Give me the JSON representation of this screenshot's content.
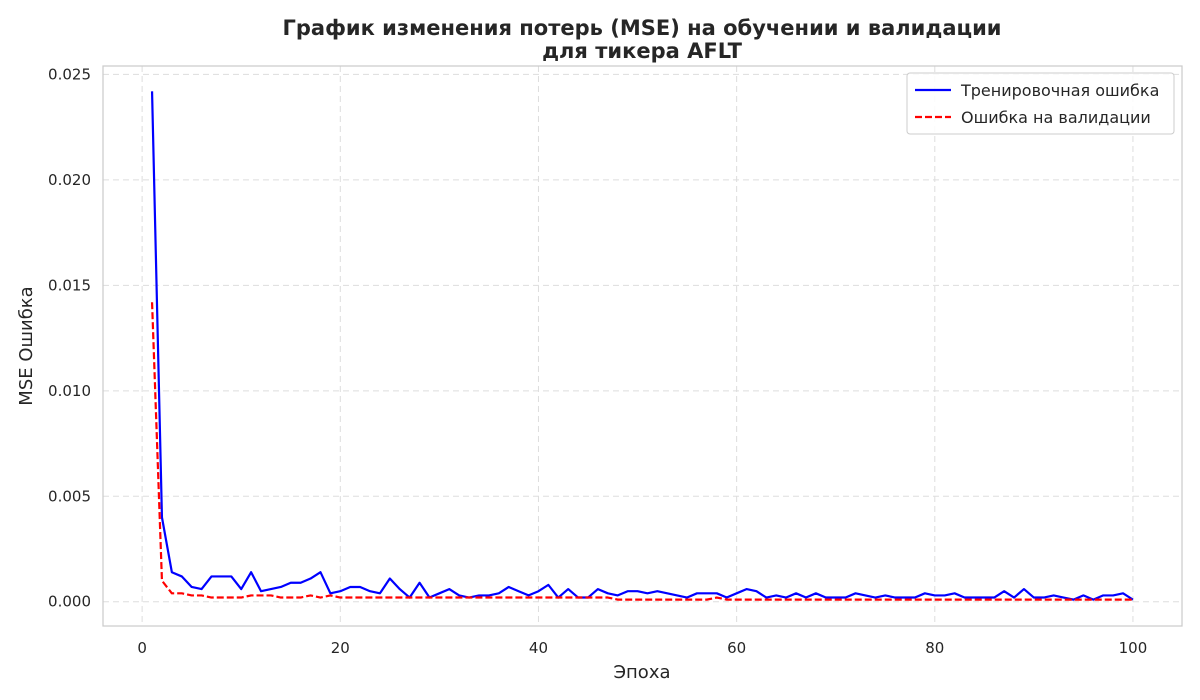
{
  "chart_data": {
    "type": "line",
    "title_line1": "График изменения потерь (MSE) на обучении и валидации",
    "title_line2": "для тикера AFLT",
    "xlabel": "Эпоха",
    "ylabel": "MSE Ошибка",
    "xlim": [
      -3.95,
      104.95
    ],
    "ylim": [
      -0.00115,
      0.0254
    ],
    "xticks": [
      0,
      20,
      40,
      60,
      80,
      100
    ],
    "xtick_labels": [
      "0",
      "20",
      "40",
      "60",
      "80",
      "100"
    ],
    "yticks": [
      0.0,
      0.005,
      0.01,
      0.015,
      0.02,
      0.025
    ],
    "ytick_labels": [
      "0.000",
      "0.005",
      "0.010",
      "0.015",
      "0.020",
      "0.025"
    ],
    "grid": true,
    "legend_position": "top-right",
    "x": [
      1,
      2,
      3,
      4,
      5,
      6,
      7,
      8,
      9,
      10,
      11,
      12,
      13,
      14,
      15,
      16,
      17,
      18,
      19,
      20,
      21,
      22,
      23,
      24,
      25,
      26,
      27,
      28,
      29,
      30,
      31,
      32,
      33,
      34,
      35,
      36,
      37,
      38,
      39,
      40,
      41,
      42,
      43,
      44,
      45,
      46,
      47,
      48,
      49,
      50,
      51,
      52,
      53,
      54,
      55,
      56,
      57,
      58,
      59,
      60,
      61,
      62,
      63,
      64,
      65,
      66,
      67,
      68,
      69,
      70,
      71,
      72,
      73,
      74,
      75,
      76,
      77,
      78,
      79,
      80,
      81,
      82,
      83,
      84,
      85,
      86,
      87,
      88,
      89,
      90,
      91,
      92,
      93,
      94,
      95,
      96,
      97,
      98,
      99,
      100
    ],
    "series": [
      {
        "name": "Тренировочная ошибка",
        "color": "#0000ff",
        "style": "solid",
        "values": [
          0.0242,
          0.004,
          0.0014,
          0.0012,
          0.0007,
          0.0006,
          0.0012,
          0.0012,
          0.0012,
          0.0006,
          0.0014,
          0.0005,
          0.0006,
          0.0007,
          0.0009,
          0.0009,
          0.0011,
          0.0014,
          0.0004,
          0.0005,
          0.0007,
          0.0007,
          0.0005,
          0.0004,
          0.0011,
          0.0006,
          0.0002,
          0.0009,
          0.0002,
          0.0004,
          0.0006,
          0.0003,
          0.0002,
          0.0003,
          0.0003,
          0.0004,
          0.0007,
          0.0005,
          0.0003,
          0.0005,
          0.0008,
          0.0002,
          0.0006,
          0.0002,
          0.0002,
          0.0006,
          0.0004,
          0.0003,
          0.0005,
          0.0005,
          0.0004,
          0.0005,
          0.0004,
          0.0003,
          0.0002,
          0.0004,
          0.0004,
          0.0004,
          0.0002,
          0.0004,
          0.0006,
          0.0005,
          0.0002,
          0.0003,
          0.0002,
          0.0004,
          0.0002,
          0.0004,
          0.0002,
          0.0002,
          0.0002,
          0.0004,
          0.0003,
          0.0002,
          0.0003,
          0.0002,
          0.0002,
          0.0002,
          0.0004,
          0.0003,
          0.0003,
          0.0004,
          0.0002,
          0.0002,
          0.0002,
          0.0002,
          0.0005,
          0.0002,
          0.0006,
          0.0002,
          0.0002,
          0.0003,
          0.0002,
          0.0001,
          0.0003,
          0.0001,
          0.0003,
          0.0003,
          0.0004,
          0.0001
        ]
      },
      {
        "name": "Ошибка на валидации",
        "color": "#ff0000",
        "style": "dashed",
        "values": [
          0.0142,
          0.001,
          0.0004,
          0.0004,
          0.0003,
          0.0003,
          0.0002,
          0.0002,
          0.0002,
          0.0002,
          0.0003,
          0.0003,
          0.0003,
          0.0002,
          0.0002,
          0.0002,
          0.0003,
          0.0002,
          0.0003,
          0.0002,
          0.0002,
          0.0002,
          0.0002,
          0.0002,
          0.0002,
          0.0002,
          0.0002,
          0.0002,
          0.0002,
          0.0002,
          0.0002,
          0.0002,
          0.0002,
          0.0002,
          0.0002,
          0.0002,
          0.0002,
          0.0002,
          0.0002,
          0.0002,
          0.0002,
          0.0002,
          0.0002,
          0.0002,
          0.0002,
          0.0002,
          0.0002,
          0.0001,
          0.0001,
          0.0001,
          0.0001,
          0.0001,
          0.0001,
          0.0001,
          0.0001,
          0.0001,
          0.0001,
          0.0002,
          0.0001,
          0.0001,
          0.0001,
          0.0001,
          0.0001,
          0.0001,
          0.0001,
          0.0001,
          0.0001,
          0.0001,
          0.0001,
          0.0001,
          0.0001,
          0.0001,
          0.0001,
          0.0001,
          0.0001,
          0.0001,
          0.0001,
          0.0001,
          0.0001,
          0.0001,
          0.0001,
          0.0001,
          0.0001,
          0.0001,
          0.0001,
          0.0001,
          0.0001,
          0.0001,
          0.0001,
          0.0001,
          0.0001,
          0.0001,
          0.0001,
          0.0001,
          0.0001,
          0.0001,
          0.0001,
          0.0001,
          0.0001,
          0.0001
        ]
      }
    ]
  }
}
